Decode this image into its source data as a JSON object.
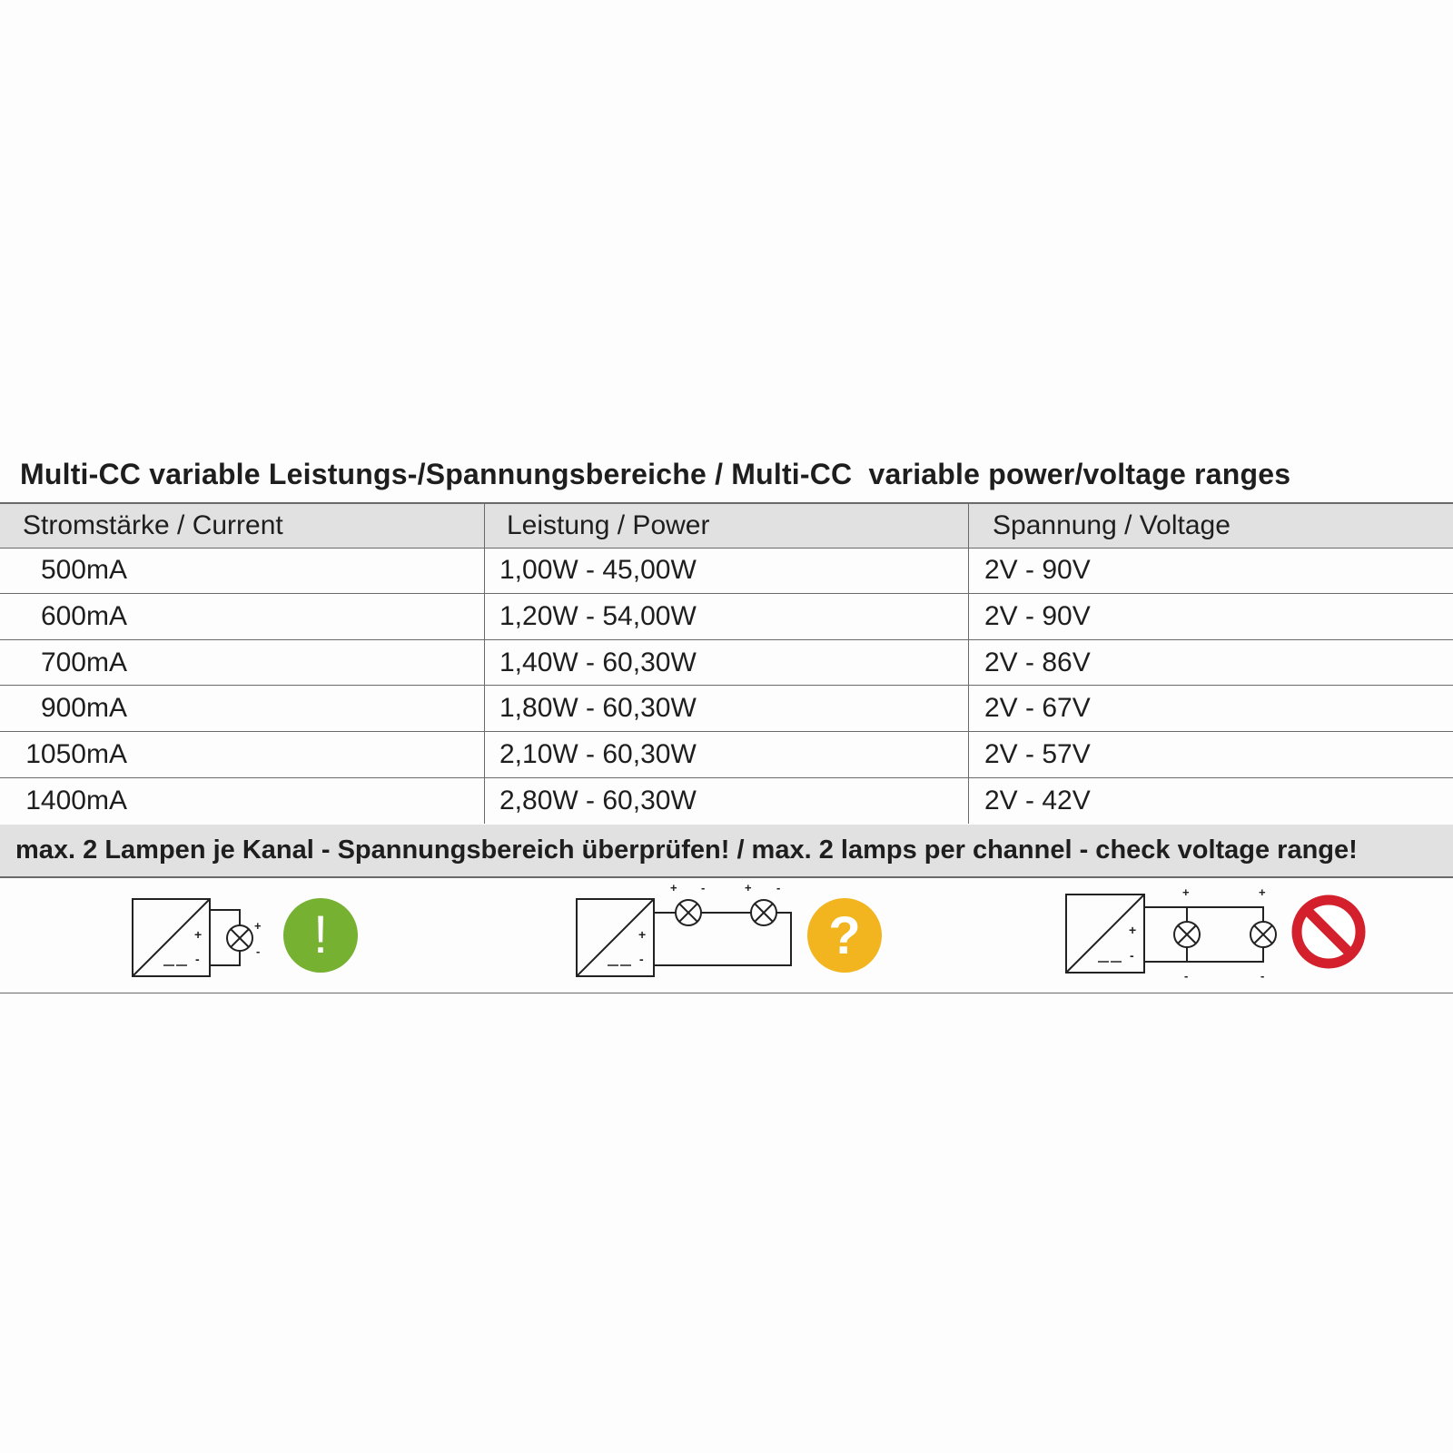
{
  "title": "Multi-CC variable Leistungs-/Spannungsbereiche / Multi-CC  variable power/voltage ranges",
  "table": {
    "headers": [
      "Stromstärke / Current",
      "Leistung / Power",
      "Spannung / Voltage"
    ],
    "rows": [
      [
        "500mA",
        "1,00W - 45,00W",
        "2V - 90V"
      ],
      [
        "600mA",
        "1,20W - 54,00W",
        "2V - 90V"
      ],
      [
        "700mA",
        "1,40W - 60,30W",
        "2V - 86V"
      ],
      [
        "900mA",
        "1,80W - 60,30W",
        "2V - 67V"
      ],
      [
        "1050mA",
        "2,10W - 60,30W",
        "2V - 57V"
      ],
      [
        "1400mA",
        "2,80W - 60,30W",
        "2V - 42V"
      ]
    ]
  },
  "note": "max. 2 Lampen je Kanal - Spannungsbereich überprüfen! / max. 2 lamps per channel - check voltage range!",
  "diagrams": [
    {
      "wiring": "single-lamp",
      "status_icon": "exclamation-icon",
      "color": "#76b132",
      "symbol": "!"
    },
    {
      "wiring": "two-lamps-series",
      "status_icon": "question-icon",
      "color": "#f2b51f",
      "symbol": "?"
    },
    {
      "wiring": "two-lamps-parallel",
      "status_icon": "prohibited-icon",
      "color": "#d3202c"
    }
  ],
  "polarity": {
    "plus": "+",
    "minus": "-",
    "dc": "=="
  }
}
